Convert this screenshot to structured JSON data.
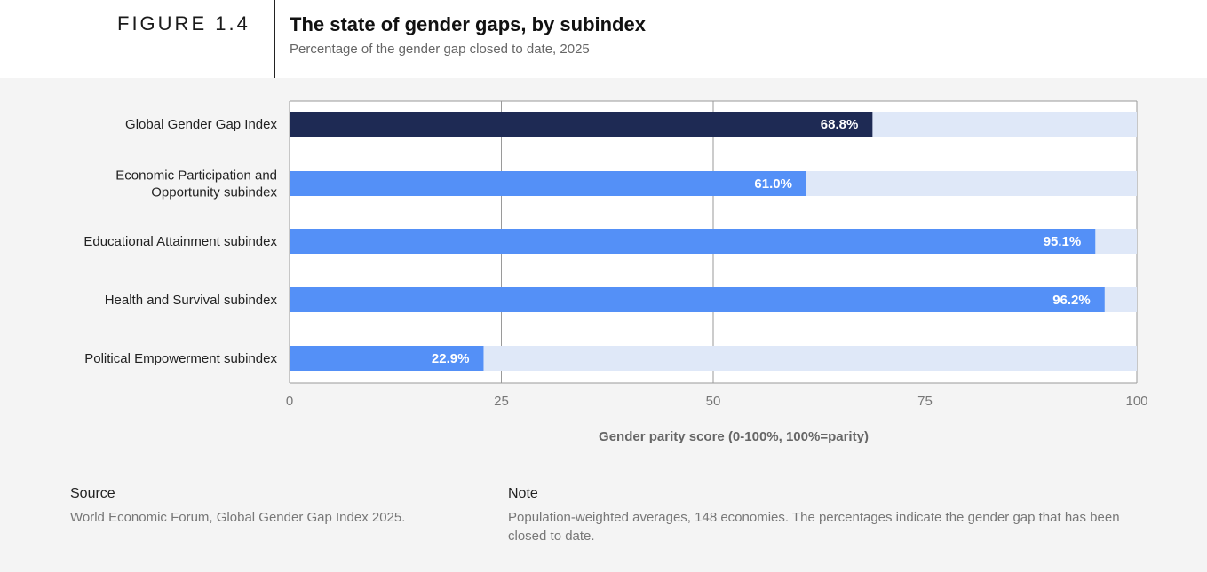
{
  "header": {
    "figure_label": "FIGURE 1.4",
    "title": "The state of gender gaps, by subindex",
    "subtitle": "Percentage of the gender gap closed to date, 2025"
  },
  "chart_data": {
    "type": "bar",
    "orientation": "horizontal",
    "categories": [
      [
        "Global Gender Gap Index"
      ],
      [
        "Economic Participation and",
        "Opportunity subindex"
      ],
      [
        "Educational Attainment subindex"
      ],
      [
        "Health and Survival subindex"
      ],
      [
        "Political Empowerment subindex"
      ]
    ],
    "values": [
      68.8,
      61.0,
      95.1,
      96.2,
      22.9
    ],
    "value_labels": [
      "68.8%",
      "61.0%",
      "95.1%",
      "96.2%",
      "22.9%"
    ],
    "xlim": [
      0,
      100
    ],
    "xticks": [
      0,
      25,
      50,
      75,
      100
    ],
    "xlabel": "Gender parity score (0-100%, 100%=parity)",
    "grid": true,
    "colors": {
      "highlight_bar": "#1e2a54",
      "bar": "#5490f7",
      "track": "#dfe8f8",
      "grid": "#9a9a9a"
    }
  },
  "footer": {
    "source_heading": "Source",
    "source_text": "World Economic Forum, Global Gender Gap Index 2025.",
    "note_heading": "Note",
    "note_text": "Population-weighted averages, 148 economies. The percentages indicate the gender gap that has been closed to date."
  }
}
